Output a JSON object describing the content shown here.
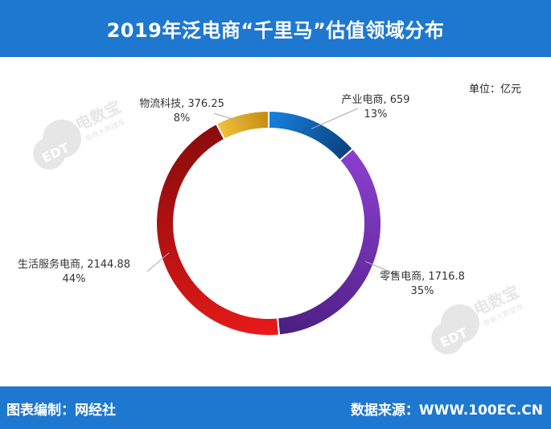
{
  "header": {
    "title": "2019年泛电商“千里马”估值领域分布"
  },
  "unit_label": "单位：亿元",
  "watermark": {
    "brand": "电数宝",
    "sub": "电商大数据库",
    "logo": "EDT"
  },
  "footer": {
    "left": "图表编制：网经社",
    "right": "数据来源：WWW.100EC.CN"
  },
  "chart_data": {
    "type": "pie",
    "donut": true,
    "start_angle_deg": 0,
    "slices": [
      {
        "name": "产业电商",
        "value": 659,
        "value_text": "659",
        "pct": "13%",
        "color_light": "#1a82e0",
        "color_dark": "#0a3f7a"
      },
      {
        "name": "零售电商",
        "value": 1716.8,
        "value_text": "1716.8",
        "pct": "35%",
        "color_light": "#8c3fd0",
        "color_dark": "#4a1e80"
      },
      {
        "name": "生活服务电商",
        "value": 2144.88,
        "value_text": "2144.88",
        "pct": "44%",
        "color_light": "#ea1a1a",
        "color_dark": "#8a0c0c"
      },
      {
        "name": "物流科技",
        "value": 376.25,
        "value_text": "376.25",
        "pct": "8%",
        "color_light": "#f2c33a",
        "color_dark": "#c48a10"
      }
    ]
  }
}
